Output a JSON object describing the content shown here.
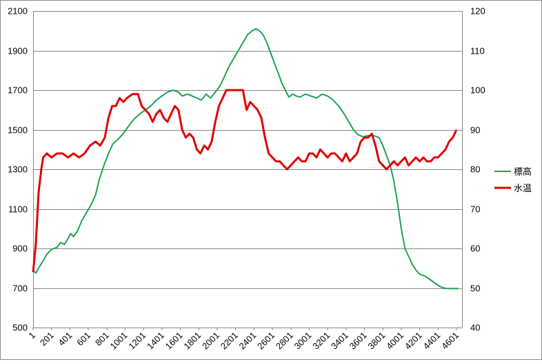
{
  "chart_data": {
    "type": "line",
    "x": {
      "min": 1,
      "max": 4660,
      "tick_labels": [
        "1",
        "201",
        "401",
        "601",
        "801",
        "1001",
        "1201",
        "1401",
        "1601",
        "1801",
        "2001",
        "2201",
        "2401",
        "2601",
        "2801",
        "3001",
        "3201",
        "3401",
        "3601",
        "3801",
        "4001",
        "4201",
        "4401",
        "4601"
      ],
      "tick_values": [
        1,
        201,
        401,
        601,
        801,
        1001,
        1201,
        1401,
        1601,
        1801,
        2001,
        2201,
        2401,
        2601,
        2801,
        3001,
        3201,
        3401,
        3601,
        3801,
        4001,
        4201,
        4401,
        4601
      ]
    },
    "y_left": {
      "min": 500,
      "max": 2100,
      "ticks": [
        "500",
        "700",
        "900",
        "1100",
        "1300",
        "1500",
        "1700",
        "1900",
        "2100"
      ],
      "grid": true
    },
    "y_right": {
      "min": 40,
      "max": 120,
      "ticks": [
        "40",
        "50",
        "60",
        "70",
        "80",
        "90",
        "100",
        "110",
        "120"
      ]
    },
    "legend_position": "right",
    "series": [
      {
        "name": "標高",
        "axis": "left",
        "color": "#1aa350",
        "points": [
          [
            1,
            790
          ],
          [
            30,
            775
          ],
          [
            60,
            800
          ],
          [
            100,
            830
          ],
          [
            150,
            870
          ],
          [
            200,
            895
          ],
          [
            260,
            905
          ],
          [
            300,
            930
          ],
          [
            340,
            920
          ],
          [
            380,
            950
          ],
          [
            410,
            975
          ],
          [
            440,
            960
          ],
          [
            480,
            985
          ],
          [
            530,
            1040
          ],
          [
            580,
            1080
          ],
          [
            630,
            1120
          ],
          [
            680,
            1170
          ],
          [
            720,
            1250
          ],
          [
            770,
            1320
          ],
          [
            820,
            1380
          ],
          [
            870,
            1430
          ],
          [
            920,
            1450
          ],
          [
            980,
            1480
          ],
          [
            1040,
            1520
          ],
          [
            1100,
            1555
          ],
          [
            1160,
            1580
          ],
          [
            1220,
            1600
          ],
          [
            1280,
            1620
          ],
          [
            1340,
            1650
          ],
          [
            1400,
            1670
          ],
          [
            1460,
            1690
          ],
          [
            1520,
            1700
          ],
          [
            1580,
            1690
          ],
          [
            1620,
            1670
          ],
          [
            1680,
            1680
          ],
          [
            1730,
            1670
          ],
          [
            1780,
            1660
          ],
          [
            1830,
            1650
          ],
          [
            1880,
            1680
          ],
          [
            1930,
            1660
          ],
          [
            1980,
            1690
          ],
          [
            2030,
            1720
          ],
          [
            2080,
            1770
          ],
          [
            2130,
            1820
          ],
          [
            2180,
            1860
          ],
          [
            2230,
            1900
          ],
          [
            2280,
            1940
          ],
          [
            2330,
            1980
          ],
          [
            2380,
            2000
          ],
          [
            2420,
            2010
          ],
          [
            2460,
            2000
          ],
          [
            2500,
            1980
          ],
          [
            2540,
            1940
          ],
          [
            2580,
            1890
          ],
          [
            2620,
            1840
          ],
          [
            2660,
            1790
          ],
          [
            2700,
            1740
          ],
          [
            2740,
            1700
          ],
          [
            2780,
            1665
          ],
          [
            2820,
            1680
          ],
          [
            2860,
            1670
          ],
          [
            2900,
            1665
          ],
          [
            2960,
            1680
          ],
          [
            3020,
            1670
          ],
          [
            3080,
            1660
          ],
          [
            3140,
            1680
          ],
          [
            3200,
            1670
          ],
          [
            3260,
            1650
          ],
          [
            3320,
            1620
          ],
          [
            3380,
            1580
          ],
          [
            3430,
            1540
          ],
          [
            3480,
            1500
          ],
          [
            3530,
            1475
          ],
          [
            3580,
            1465
          ],
          [
            3640,
            1470
          ],
          [
            3700,
            1470
          ],
          [
            3760,
            1460
          ],
          [
            3800,
            1420
          ],
          [
            3840,
            1370
          ],
          [
            3880,
            1320
          ],
          [
            3920,
            1240
          ],
          [
            3960,
            1130
          ],
          [
            4000,
            1000
          ],
          [
            4040,
            900
          ],
          [
            4080,
            860
          ],
          [
            4120,
            820
          ],
          [
            4160,
            790
          ],
          [
            4200,
            770
          ],
          [
            4260,
            760
          ],
          [
            4320,
            740
          ],
          [
            4380,
            720
          ],
          [
            4430,
            705
          ],
          [
            4480,
            698
          ],
          [
            4530,
            697
          ],
          [
            4580,
            697
          ],
          [
            4620,
            697
          ]
        ]
      },
      {
        "name": "水温",
        "axis": "right",
        "color": "#e00000",
        "points": [
          [
            1,
            54
          ],
          [
            30,
            61
          ],
          [
            60,
            74
          ],
          [
            90,
            80
          ],
          [
            110,
            83
          ],
          [
            150,
            84
          ],
          [
            200,
            83
          ],
          [
            260,
            84
          ],
          [
            320,
            84
          ],
          [
            380,
            83
          ],
          [
            440,
            84
          ],
          [
            500,
            83
          ],
          [
            560,
            84
          ],
          [
            620,
            86
          ],
          [
            680,
            87
          ],
          [
            730,
            86
          ],
          [
            780,
            88
          ],
          [
            820,
            93
          ],
          [
            860,
            96
          ],
          [
            900,
            96
          ],
          [
            940,
            98
          ],
          [
            980,
            97
          ],
          [
            1020,
            98
          ],
          [
            1080,
            99
          ],
          [
            1140,
            99
          ],
          [
            1180,
            96
          ],
          [
            1220,
            95
          ],
          [
            1260,
            94
          ],
          [
            1300,
            92
          ],
          [
            1340,
            94
          ],
          [
            1380,
            95
          ],
          [
            1420,
            93
          ],
          [
            1460,
            92
          ],
          [
            1500,
            94
          ],
          [
            1540,
            96
          ],
          [
            1580,
            95
          ],
          [
            1620,
            90
          ],
          [
            1660,
            88
          ],
          [
            1700,
            89
          ],
          [
            1740,
            88
          ],
          [
            1780,
            85
          ],
          [
            1820,
            84
          ],
          [
            1860,
            86
          ],
          [
            1900,
            85
          ],
          [
            1940,
            87
          ],
          [
            1980,
            92
          ],
          [
            2020,
            96
          ],
          [
            2060,
            98
          ],
          [
            2100,
            100
          ],
          [
            2160,
            100
          ],
          [
            2220,
            100
          ],
          [
            2280,
            100
          ],
          [
            2320,
            95
          ],
          [
            2360,
            97
          ],
          [
            2400,
            96
          ],
          [
            2440,
            95
          ],
          [
            2480,
            93
          ],
          [
            2520,
            88
          ],
          [
            2560,
            84
          ],
          [
            2600,
            83
          ],
          [
            2640,
            82
          ],
          [
            2680,
            82
          ],
          [
            2720,
            81
          ],
          [
            2760,
            80
          ],
          [
            2800,
            81
          ],
          [
            2840,
            82
          ],
          [
            2880,
            83
          ],
          [
            2920,
            82
          ],
          [
            2960,
            82
          ],
          [
            3000,
            84
          ],
          [
            3040,
            84
          ],
          [
            3080,
            83
          ],
          [
            3120,
            85
          ],
          [
            3160,
            84
          ],
          [
            3200,
            83
          ],
          [
            3240,
            84
          ],
          [
            3280,
            84
          ],
          [
            3320,
            83
          ],
          [
            3360,
            82
          ],
          [
            3400,
            84
          ],
          [
            3440,
            82
          ],
          [
            3480,
            83
          ],
          [
            3520,
            84
          ],
          [
            3560,
            87
          ],
          [
            3600,
            88
          ],
          [
            3640,
            88
          ],
          [
            3680,
            89
          ],
          [
            3720,
            86
          ],
          [
            3760,
            82
          ],
          [
            3800,
            81
          ],
          [
            3840,
            80
          ],
          [
            3880,
            81
          ],
          [
            3920,
            82
          ],
          [
            3960,
            81
          ],
          [
            4000,
            82
          ],
          [
            4040,
            83
          ],
          [
            4080,
            81
          ],
          [
            4120,
            82
          ],
          [
            4160,
            83
          ],
          [
            4200,
            82
          ],
          [
            4240,
            83
          ],
          [
            4280,
            82
          ],
          [
            4320,
            82
          ],
          [
            4360,
            83
          ],
          [
            4400,
            83
          ],
          [
            4440,
            84
          ],
          [
            4480,
            85
          ],
          [
            4520,
            87
          ],
          [
            4560,
            88
          ],
          [
            4600,
            90
          ]
        ]
      }
    ]
  }
}
